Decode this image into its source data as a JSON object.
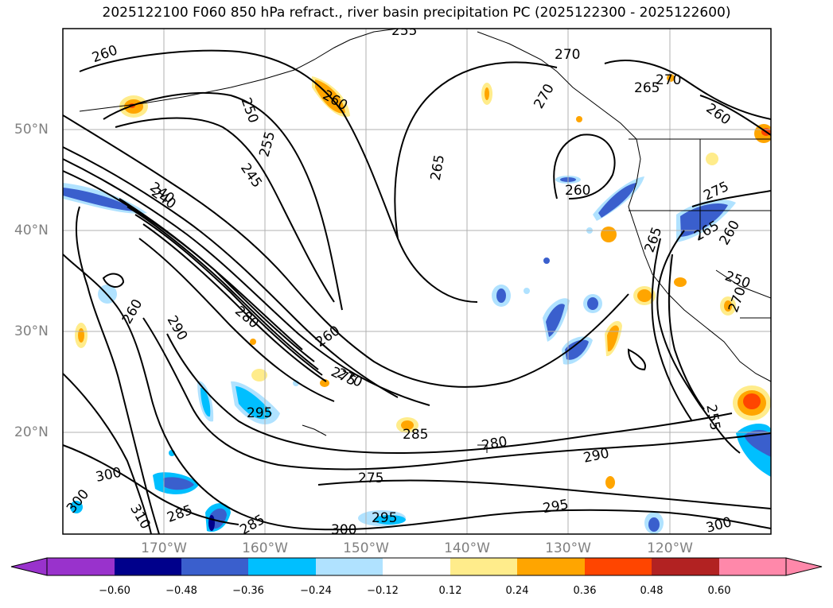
{
  "title": "2025122100 F060 850 hPa refract., river basin precipitation PC (2025122300 - 2025122600)",
  "map": {
    "projection": "mercator",
    "lon_range": [
      -180,
      -110
    ],
    "lat_range": [
      10,
      60
    ],
    "gridlines": true,
    "lon_labels": [
      "170°W",
      "160°W",
      "150°W",
      "140°W",
      "130°W",
      "120°W"
    ],
    "lat_labels": [
      "50°N",
      "40°N",
      "30°N",
      "20°N"
    ],
    "contour_variable": "850 hPa refractivity",
    "contour_labels": [
      "255",
      "260",
      "270",
      "265",
      "270",
      "260",
      "250",
      "255",
      "260",
      "265",
      "245",
      "240",
      "260",
      "270",
      "275",
      "290",
      "280",
      "260",
      "275",
      "295",
      "285",
      "280",
      "290",
      "295",
      "300",
      "300",
      "285",
      "310",
      "285",
      "300",
      "295",
      "300",
      "265",
      "260",
      "255",
      "250",
      "270",
      "260",
      "275",
      "265",
      "270",
      "240"
    ],
    "shaded_variable": "river basin precipitation PC"
  },
  "colorbar": {
    "ticks": [
      "−0.60",
      "−0.48",
      "−0.36",
      "−0.24",
      "−0.12",
      "0.12",
      "0.24",
      "0.36",
      "0.48",
      "0.60"
    ],
    "colors": [
      "#9932CC",
      "#00008B",
      "#3A5FCD",
      "#00BFFF",
      "#B0E2FF",
      "#FFFFFF",
      "#FFEC8B",
      "#FFA500",
      "#FF4500",
      "#B22222",
      "#FF88AA"
    ],
    "extend": "both"
  },
  "colors": {
    "gridline": "#b0b0b0",
    "contour": "#000000",
    "axis_label": "#808080"
  }
}
